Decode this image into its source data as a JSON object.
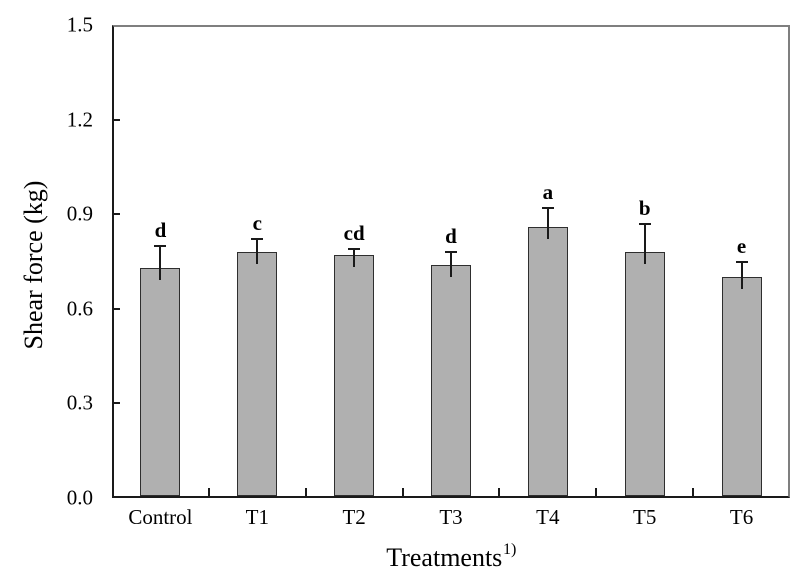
{
  "chart_data": {
    "type": "bar",
    "title": "",
    "ylabel": "Shear force (kg)",
    "xlabel": "Treatments",
    "xlabel_superscript": "1)",
    "categories": [
      "Control",
      "T1",
      "T2",
      "T3",
      "T4",
      "T5",
      "T6"
    ],
    "values": [
      0.73,
      0.78,
      0.77,
      0.74,
      0.86,
      0.78,
      0.7
    ],
    "errors": [
      0.07,
      0.04,
      0.02,
      0.04,
      0.06,
      0.09,
      0.05
    ],
    "significance_letters": [
      "d",
      "c",
      "cd",
      "d",
      "a",
      "b",
      "e"
    ],
    "ylim": [
      0,
      1.5
    ],
    "yticks": [
      "0.0",
      "0.3",
      "0.6",
      "0.9",
      "1.2",
      "1.5"
    ],
    "grid": false,
    "legend": "none",
    "bar_color": "#b0b0b0",
    "bar_border_color": "#2e2e2e",
    "axis_color": "#1a1a1a",
    "frame_color": "#7f7f7f",
    "background_color": "#ffffff"
  }
}
